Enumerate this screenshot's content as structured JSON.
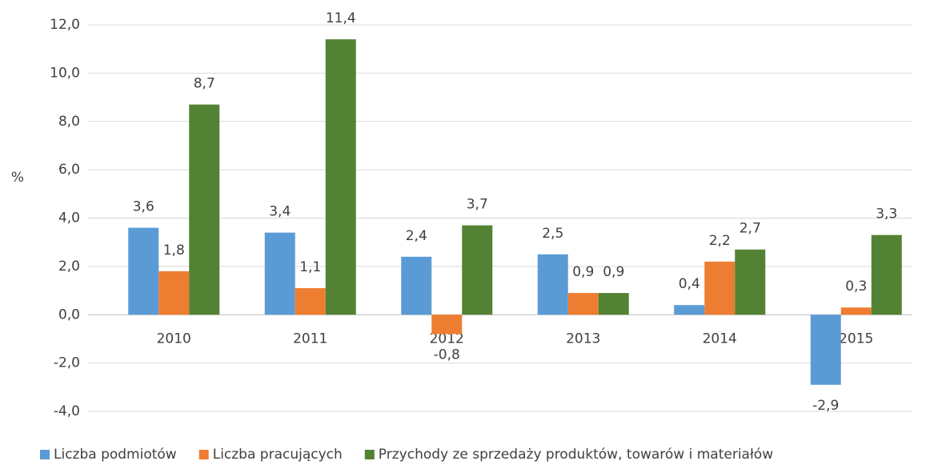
{
  "chart_data": {
    "type": "bar",
    "y_label": "%",
    "categories": [
      "2010",
      "2011",
      "2012",
      "2013",
      "2014",
      "2015"
    ],
    "series": [
      {
        "name": "Liczba podmiotów",
        "color": "#5b9bd5",
        "values": [
          3.6,
          3.4,
          2.4,
          2.5,
          0.4,
          -2.9
        ],
        "value_labels": [
          "3,6",
          "3,4",
          "2,4",
          "2,5",
          "0,4",
          "-2,9"
        ]
      },
      {
        "name": "Liczba pracujących",
        "color": "#ed7d31",
        "values": [
          1.8,
          1.1,
          -0.8,
          0.9,
          2.2,
          0.3
        ],
        "value_labels": [
          "1,8",
          "1,1",
          "-0,8",
          "0,9",
          "2,2",
          "0,3"
        ]
      },
      {
        "name": "Przychody ze sprzedaży produktów, towarów i materiałów",
        "color": "#548235",
        "values": [
          8.7,
          11.4,
          3.7,
          0.9,
          2.7,
          3.3
        ],
        "value_labels": [
          "8,7",
          "11,4",
          "3,7",
          "0,9",
          "2,7",
          "3,3"
        ]
      }
    ],
    "ylim": [
      -4,
      12
    ],
    "yticks": [
      {
        "value": -4,
        "label": "-4,0"
      },
      {
        "value": -2,
        "label": "-2,0"
      },
      {
        "value": 0,
        "label": "0,0"
      },
      {
        "value": 2,
        "label": "2,0"
      },
      {
        "value": 4,
        "label": "4,0"
      },
      {
        "value": 6,
        "label": "6,0"
      },
      {
        "value": 8,
        "label": "8,0"
      },
      {
        "value": 10,
        "label": "10,0"
      },
      {
        "value": 12,
        "label": "12,0"
      }
    ],
    "grid": true,
    "legend": "bottom"
  }
}
